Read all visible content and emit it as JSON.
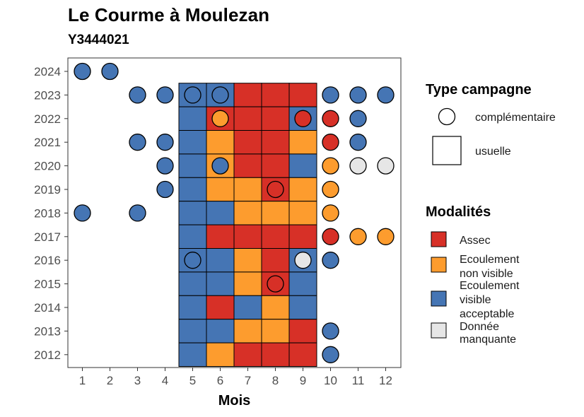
{
  "title": "Le Courme à Moulezan",
  "subtitle": "Y3444021",
  "colors": {
    "Assec": "#d73027",
    "Ecoulement non visible": "#fd9c2e",
    "Ecoulement visible acceptable": "#4575b4",
    "Donnée manquante": "#e6e6e6"
  },
  "chart_data": {
    "type": "heatmap",
    "xlabel": "Mois",
    "ylabel": "",
    "x_ticks": [
      "1",
      "2",
      "3",
      "4",
      "5",
      "6",
      "7",
      "8",
      "9",
      "10",
      "11",
      "12"
    ],
    "y_ticks": [
      "2012",
      "2013",
      "2014",
      "2015",
      "2016",
      "2017",
      "2018",
      "2019",
      "2020",
      "2021",
      "2022",
      "2023",
      "2024"
    ],
    "legends": {
      "type_campagne": {
        "title": "Type campagne",
        "items": [
          "complémentaire",
          "usuelle"
        ]
      },
      "modalites": {
        "title": "Modalités",
        "items": [
          {
            "key": "Assec",
            "lines": [
              "Assec"
            ]
          },
          {
            "key": "Ecoulement non visible",
            "lines": [
              "Ecoulement",
              "non visible"
            ]
          },
          {
            "key": "Ecoulement visible acceptable",
            "lines": [
              "Ecoulement",
              "visible",
              "acceptable"
            ]
          },
          {
            "key": "Donnée manquante",
            "lines": [
              "Donnée",
              "manquante"
            ]
          }
        ]
      }
    },
    "usuelle": [
      {
        "year": 2023,
        "month": 5,
        "value": "Ecoulement visible acceptable"
      },
      {
        "year": 2023,
        "month": 6,
        "value": "Ecoulement visible acceptable"
      },
      {
        "year": 2023,
        "month": 7,
        "value": "Assec"
      },
      {
        "year": 2023,
        "month": 8,
        "value": "Assec"
      },
      {
        "year": 2023,
        "month": 9,
        "value": "Assec"
      },
      {
        "year": 2022,
        "month": 5,
        "value": "Ecoulement visible acceptable"
      },
      {
        "year": 2022,
        "month": 6,
        "value": "Assec"
      },
      {
        "year": 2022,
        "month": 7,
        "value": "Assec"
      },
      {
        "year": 2022,
        "month": 8,
        "value": "Assec"
      },
      {
        "year": 2022,
        "month": 9,
        "value": "Ecoulement visible acceptable"
      },
      {
        "year": 2021,
        "month": 5,
        "value": "Ecoulement visible acceptable"
      },
      {
        "year": 2021,
        "month": 6,
        "value": "Ecoulement non visible"
      },
      {
        "year": 2021,
        "month": 7,
        "value": "Assec"
      },
      {
        "year": 2021,
        "month": 8,
        "value": "Assec"
      },
      {
        "year": 2021,
        "month": 9,
        "value": "Ecoulement non visible"
      },
      {
        "year": 2020,
        "month": 5,
        "value": "Ecoulement visible acceptable"
      },
      {
        "year": 2020,
        "month": 6,
        "value": "Ecoulement non visible"
      },
      {
        "year": 2020,
        "month": 7,
        "value": "Assec"
      },
      {
        "year": 2020,
        "month": 8,
        "value": "Assec"
      },
      {
        "year": 2020,
        "month": 9,
        "value": "Ecoulement visible acceptable"
      },
      {
        "year": 2019,
        "month": 5,
        "value": "Ecoulement visible acceptable"
      },
      {
        "year": 2019,
        "month": 6,
        "value": "Ecoulement non visible"
      },
      {
        "year": 2019,
        "month": 7,
        "value": "Ecoulement non visible"
      },
      {
        "year": 2019,
        "month": 8,
        "value": "Assec"
      },
      {
        "year": 2019,
        "month": 9,
        "value": "Ecoulement non visible"
      },
      {
        "year": 2018,
        "month": 5,
        "value": "Ecoulement visible acceptable"
      },
      {
        "year": 2018,
        "month": 6,
        "value": "Ecoulement visible acceptable"
      },
      {
        "year": 2018,
        "month": 7,
        "value": "Ecoulement non visible"
      },
      {
        "year": 2018,
        "month": 8,
        "value": "Ecoulement non visible"
      },
      {
        "year": 2018,
        "month": 9,
        "value": "Ecoulement non visible"
      },
      {
        "year": 2017,
        "month": 5,
        "value": "Ecoulement visible acceptable"
      },
      {
        "year": 2017,
        "month": 6,
        "value": "Assec"
      },
      {
        "year": 2017,
        "month": 7,
        "value": "Assec"
      },
      {
        "year": 2017,
        "month": 8,
        "value": "Assec"
      },
      {
        "year": 2017,
        "month": 9,
        "value": "Assec"
      },
      {
        "year": 2016,
        "month": 5,
        "value": "Ecoulement visible acceptable"
      },
      {
        "year": 2016,
        "month": 6,
        "value": "Ecoulement visible acceptable"
      },
      {
        "year": 2016,
        "month": 7,
        "value": "Ecoulement non visible"
      },
      {
        "year": 2016,
        "month": 8,
        "value": "Assec"
      },
      {
        "year": 2016,
        "month": 9,
        "value": "Ecoulement visible acceptable"
      },
      {
        "year": 2015,
        "month": 5,
        "value": "Ecoulement visible acceptable"
      },
      {
        "year": 2015,
        "month": 6,
        "value": "Ecoulement visible acceptable"
      },
      {
        "year": 2015,
        "month": 7,
        "value": "Ecoulement non visible"
      },
      {
        "year": 2015,
        "month": 8,
        "value": "Assec"
      },
      {
        "year": 2015,
        "month": 9,
        "value": "Ecoulement visible acceptable"
      },
      {
        "year": 2014,
        "month": 5,
        "value": "Ecoulement visible acceptable"
      },
      {
        "year": 2014,
        "month": 6,
        "value": "Assec"
      },
      {
        "year": 2014,
        "month": 7,
        "value": "Ecoulement visible acceptable"
      },
      {
        "year": 2014,
        "month": 8,
        "value": "Ecoulement non visible"
      },
      {
        "year": 2014,
        "month": 9,
        "value": "Ecoulement visible acceptable"
      },
      {
        "year": 2013,
        "month": 5,
        "value": "Ecoulement visible acceptable"
      },
      {
        "year": 2013,
        "month": 6,
        "value": "Ecoulement visible acceptable"
      },
      {
        "year": 2013,
        "month": 7,
        "value": "Ecoulement non visible"
      },
      {
        "year": 2013,
        "month": 8,
        "value": "Ecoulement non visible"
      },
      {
        "year": 2013,
        "month": 9,
        "value": "Assec"
      },
      {
        "year": 2012,
        "month": 5,
        "value": "Ecoulement visible acceptable"
      },
      {
        "year": 2012,
        "month": 6,
        "value": "Ecoulement non visible"
      },
      {
        "year": 2012,
        "month": 7,
        "value": "Assec"
      },
      {
        "year": 2012,
        "month": 8,
        "value": "Assec"
      },
      {
        "year": 2012,
        "month": 9,
        "value": "Assec"
      }
    ],
    "complementaire": [
      {
        "year": 2024,
        "month": 1,
        "value": "Ecoulement visible acceptable"
      },
      {
        "year": 2024,
        "month": 2,
        "value": "Ecoulement visible acceptable"
      },
      {
        "year": 2023,
        "month": 3,
        "value": "Ecoulement visible acceptable"
      },
      {
        "year": 2023,
        "month": 4,
        "value": "Ecoulement visible acceptable"
      },
      {
        "year": 2023,
        "month": 5,
        "value": "Ecoulement visible acceptable"
      },
      {
        "year": 2023,
        "month": 6,
        "value": "Ecoulement visible acceptable"
      },
      {
        "year": 2023,
        "month": 10,
        "value": "Ecoulement visible acceptable"
      },
      {
        "year": 2023,
        "month": 11,
        "value": "Ecoulement visible acceptable"
      },
      {
        "year": 2023,
        "month": 12,
        "value": "Ecoulement visible acceptable"
      },
      {
        "year": 2022,
        "month": 6,
        "value": "Ecoulement non visible"
      },
      {
        "year": 2022,
        "month": 9,
        "value": "Assec"
      },
      {
        "year": 2022,
        "month": 10,
        "value": "Assec"
      },
      {
        "year": 2022,
        "month": 11,
        "value": "Ecoulement visible acceptable"
      },
      {
        "year": 2021,
        "month": 3,
        "value": "Ecoulement visible acceptable"
      },
      {
        "year": 2021,
        "month": 4,
        "value": "Ecoulement visible acceptable"
      },
      {
        "year": 2021,
        "month": 10,
        "value": "Assec"
      },
      {
        "year": 2021,
        "month": 11,
        "value": "Ecoulement visible acceptable"
      },
      {
        "year": 2020,
        "month": 4,
        "value": "Ecoulement visible acceptable"
      },
      {
        "year": 2020,
        "month": 6,
        "value": "Ecoulement visible acceptable"
      },
      {
        "year": 2020,
        "month": 10,
        "value": "Ecoulement non visible"
      },
      {
        "year": 2020,
        "month": 11,
        "value": "Donnée manquante"
      },
      {
        "year": 2020,
        "month": 12,
        "value": "Donnée manquante"
      },
      {
        "year": 2019,
        "month": 4,
        "value": "Ecoulement visible acceptable"
      },
      {
        "year": 2019,
        "month": 8,
        "value": "Assec"
      },
      {
        "year": 2019,
        "month": 10,
        "value": "Ecoulement non visible"
      },
      {
        "year": 2018,
        "month": 1,
        "value": "Ecoulement visible acceptable"
      },
      {
        "year": 2018,
        "month": 3,
        "value": "Ecoulement visible acceptable"
      },
      {
        "year": 2018,
        "month": 10,
        "value": "Ecoulement non visible"
      },
      {
        "year": 2017,
        "month": 10,
        "value": "Assec"
      },
      {
        "year": 2017,
        "month": 11,
        "value": "Ecoulement non visible"
      },
      {
        "year": 2017,
        "month": 12,
        "value": "Ecoulement non visible"
      },
      {
        "year": 2016,
        "month": 5,
        "value": "Ecoulement visible acceptable"
      },
      {
        "year": 2016,
        "month": 9,
        "value": "Donnée manquante"
      },
      {
        "year": 2016,
        "month": 10,
        "value": "Ecoulement visible acceptable"
      },
      {
        "year": 2015,
        "month": 8,
        "value": "Assec"
      },
      {
        "year": 2013,
        "month": 10,
        "value": "Ecoulement visible acceptable"
      },
      {
        "year": 2012,
        "month": 10,
        "value": "Ecoulement visible acceptable"
      }
    ]
  }
}
